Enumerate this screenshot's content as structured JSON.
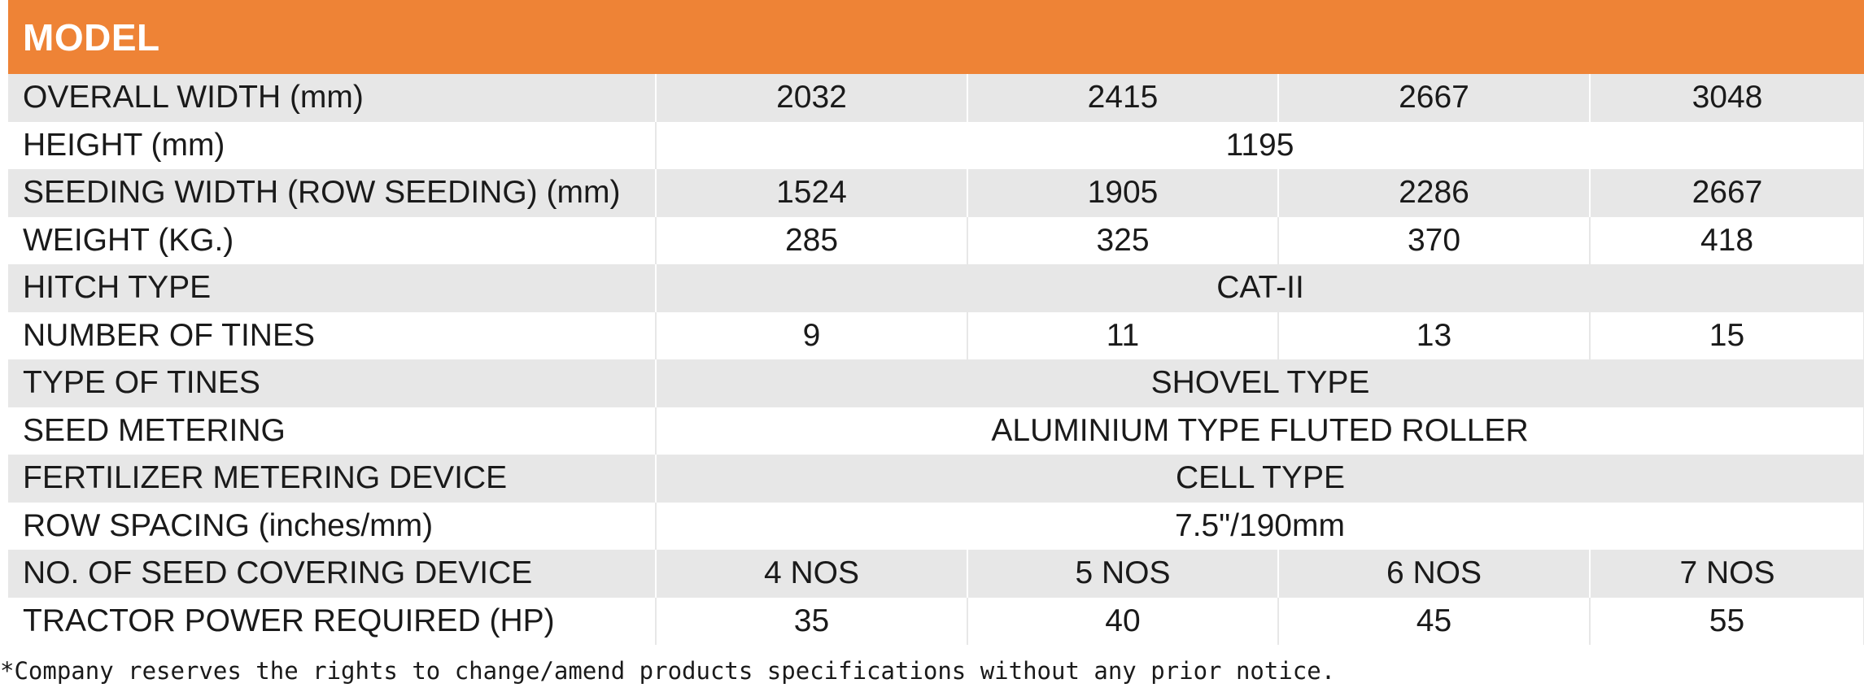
{
  "header": {
    "title": "MODEL"
  },
  "rows": [
    {
      "label": "OVERALL WIDTH (mm)",
      "values": [
        "2032",
        "2415",
        "2667",
        "3048"
      ]
    },
    {
      "label": "HEIGHT (mm)",
      "merged": "1195"
    },
    {
      "label": "SEEDING WIDTH (ROW SEEDING) (mm)",
      "values": [
        "1524",
        "1905",
        "2286",
        "2667"
      ]
    },
    {
      "label": "WEIGHT (KG.)",
      "values": [
        "285",
        "325",
        "370",
        "418"
      ]
    },
    {
      "label": "HITCH TYPE",
      "merged": "CAT-II"
    },
    {
      "label": "NUMBER OF TINES",
      "values": [
        "9",
        "11",
        "13",
        "15"
      ]
    },
    {
      "label": "TYPE OF TINES",
      "merged": "SHOVEL TYPE"
    },
    {
      "label": "SEED METERING",
      "merged": "ALUMINIUM TYPE FLUTED ROLLER"
    },
    {
      "label": "FERTILIZER METERING DEVICE",
      "merged": "CELL TYPE"
    },
    {
      "label": "ROW SPACING (inches/mm)",
      "merged": "7.5\"/190mm"
    },
    {
      "label": "NO. OF SEED COVERING DEVICE",
      "values": [
        "4 NOS",
        "5 NOS",
        "6 NOS",
        "7 NOS"
      ]
    },
    {
      "label": "TRACTOR POWER REQUIRED (HP)",
      "values": [
        "35",
        "40",
        "45",
        "55"
      ]
    }
  ],
  "footer": {
    "note": "*Company reserves the rights to change/amend products specifications without any prior notice."
  },
  "colors": {
    "header_bg": "#ee8336",
    "row_alt_bg": "#e7e7e7"
  }
}
